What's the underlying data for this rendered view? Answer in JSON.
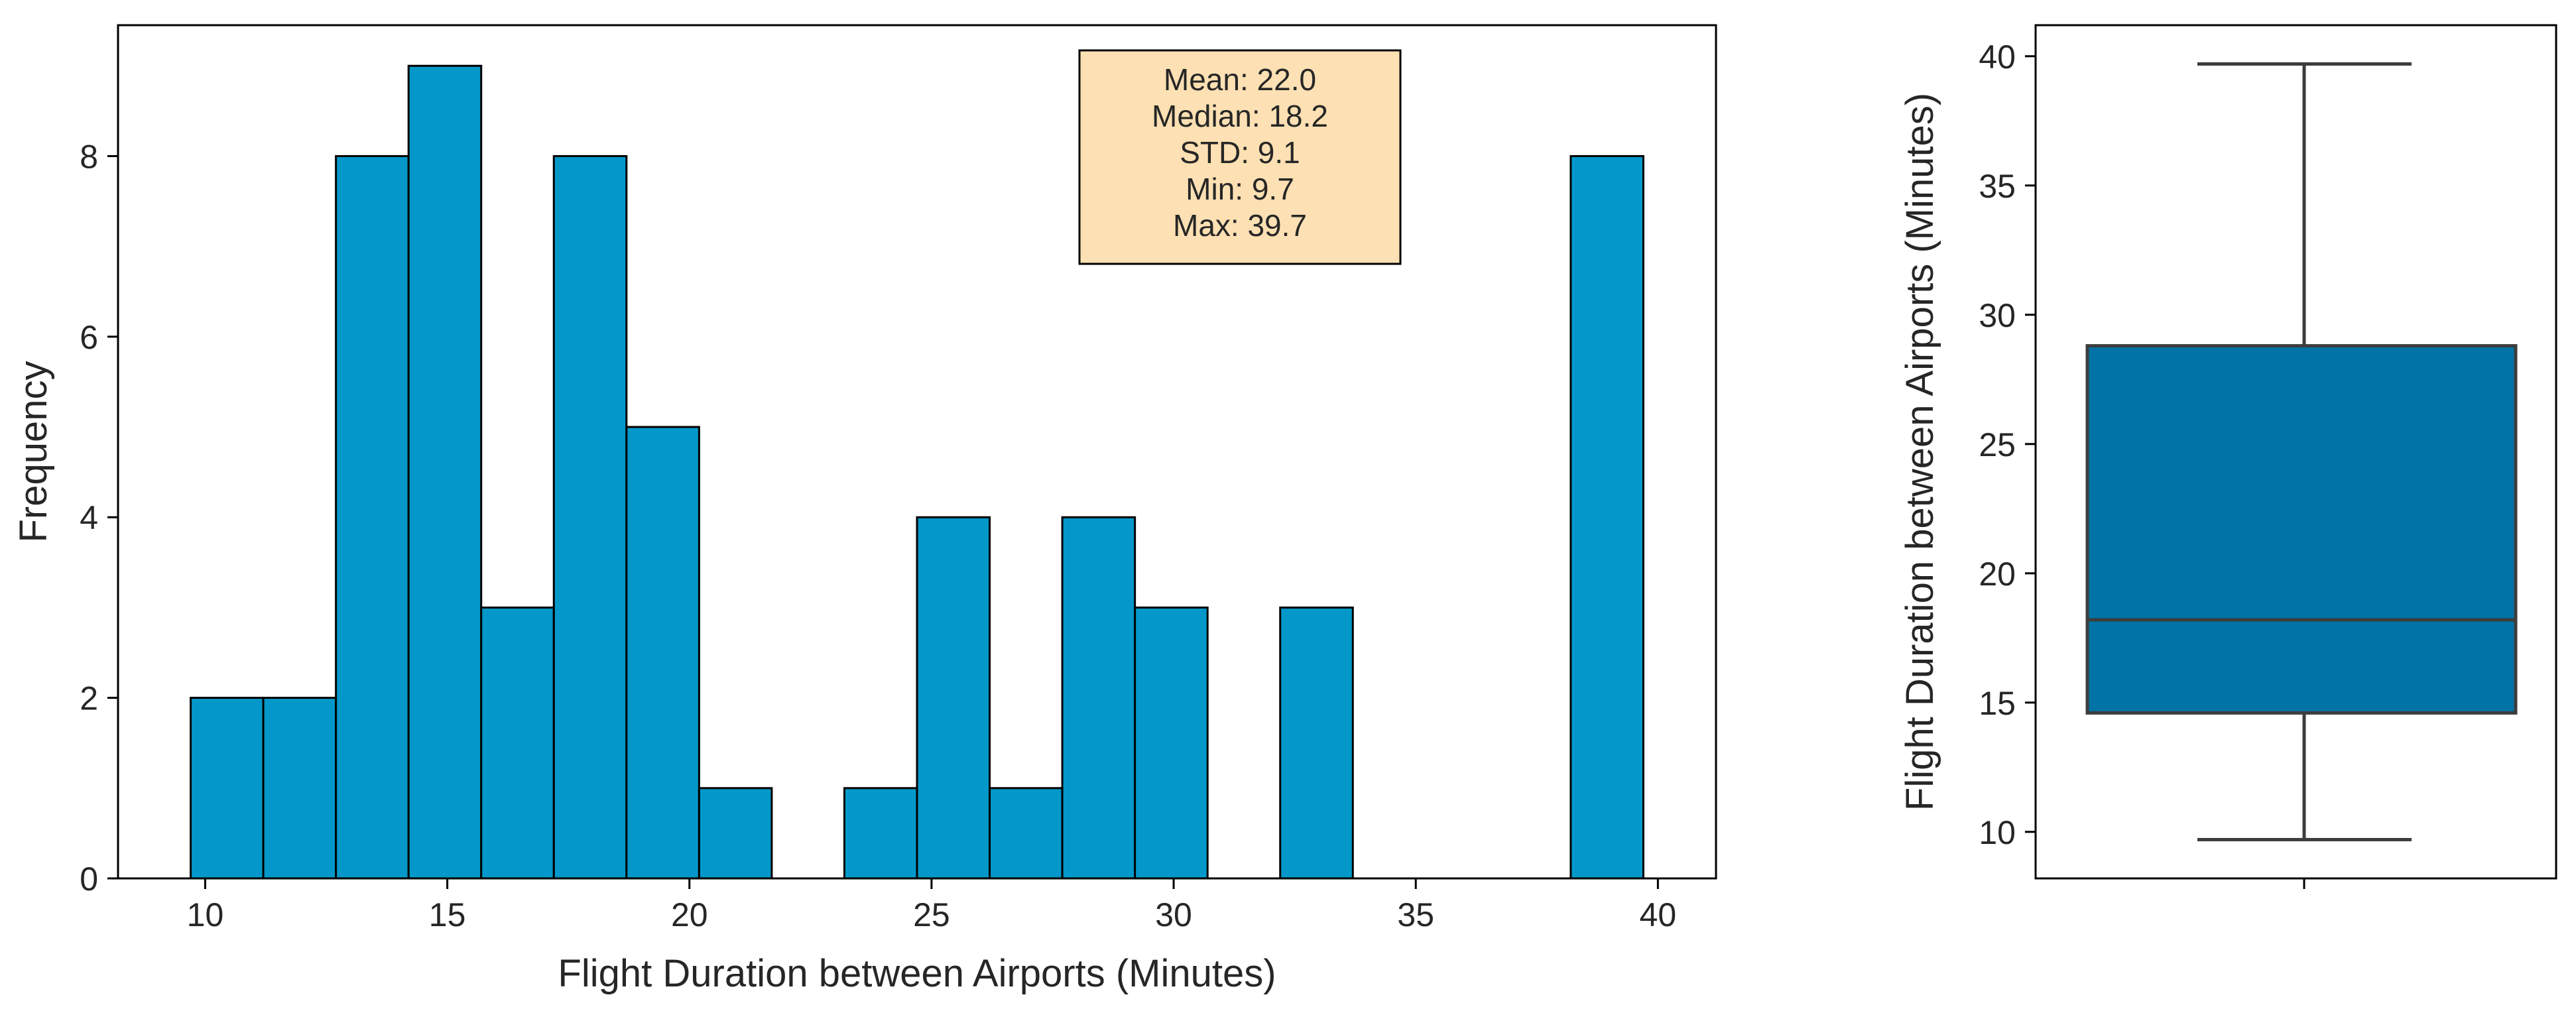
{
  "chart_data": [
    {
      "type": "histogram",
      "xlabel": "Flight Duration between Airports (Minutes)",
      "ylabel": "Frequency",
      "xlim": [
        8.2,
        41.2
      ],
      "ylim": [
        0,
        9.45
      ],
      "xticks": [
        10,
        15,
        20,
        25,
        30,
        35,
        40
      ],
      "yticks": [
        0,
        2,
        4,
        6,
        8
      ],
      "bin_edges": [
        9.7,
        11.2,
        12.7,
        14.2,
        15.7,
        17.2,
        18.7,
        20.2,
        21.7,
        23.2,
        24.7,
        26.2,
        27.7,
        29.2,
        30.7,
        32.2,
        33.7,
        35.2,
        36.7,
        38.2,
        39.7
      ],
      "values": [
        2,
        2,
        8,
        9,
        3,
        8,
        5,
        1,
        0,
        1,
        4,
        1,
        4,
        3,
        0,
        3,
        0,
        0,
        0,
        8
      ],
      "bar_color": "#0398c9",
      "edge_color": "#000000",
      "annotation": {
        "lines": [
          "Mean: 22.0",
          "Median: 18.2",
          "STD: 9.1",
          "Min: 9.7",
          "Max: 39.7"
        ],
        "background": "#fde0b3",
        "placement": "top-center-right"
      }
    },
    {
      "type": "box",
      "ylabel": "Flight Duration between Airports (Minutes)",
      "ylim": [
        8.2,
        41.2
      ],
      "yticks": [
        10,
        15,
        20,
        25,
        30,
        35,
        40
      ],
      "whisker_low": 9.7,
      "q1": 14.6,
      "median": 18.2,
      "q3": 28.8,
      "whisker_high": 39.7,
      "box_color": "#0173a6",
      "line_color": "#3d3d3d"
    }
  ]
}
